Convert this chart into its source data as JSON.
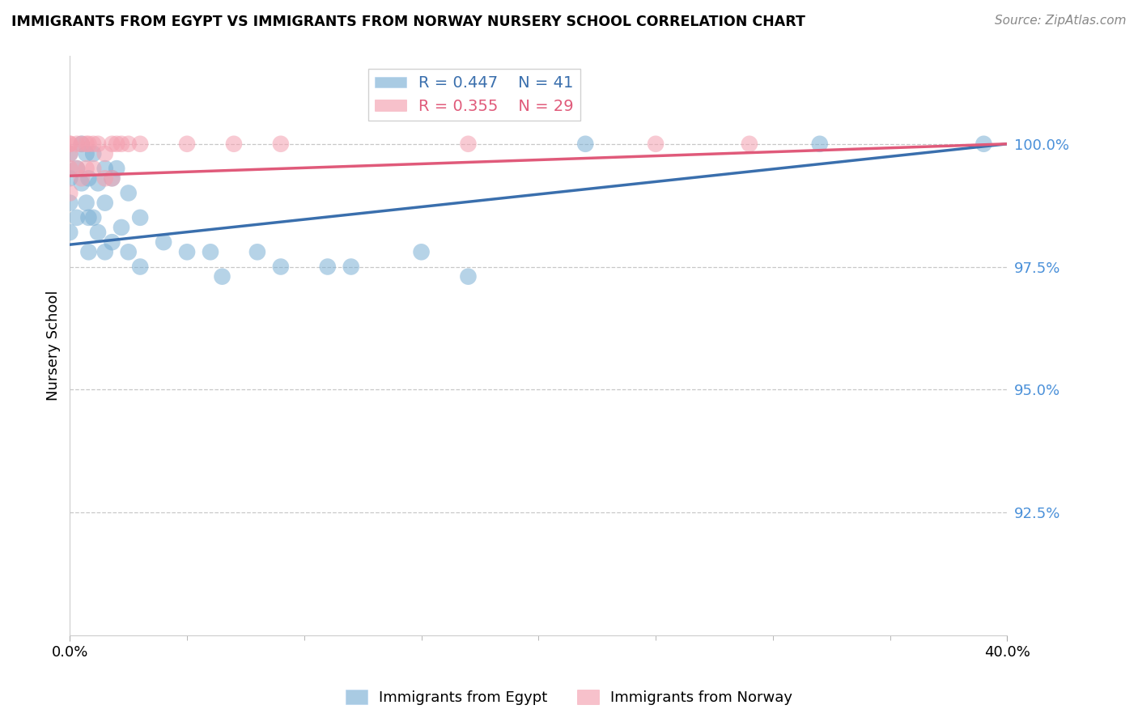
{
  "title": "IMMIGRANTS FROM EGYPT VS IMMIGRANTS FROM NORWAY NURSERY SCHOOL CORRELATION CHART",
  "source": "Source: ZipAtlas.com",
  "ylabel": "Nursery School",
  "yticks": [
    92.5,
    95.0,
    97.5,
    100.0
  ],
  "ytick_labels": [
    "92.5%",
    "95.0%",
    "97.5%",
    "100.0%"
  ],
  "xlim": [
    0.0,
    0.4
  ],
  "ylim": [
    90.0,
    101.8
  ],
  "egypt_color": "#7bafd4",
  "norway_color": "#f4a0b0",
  "egypt_line_color": "#3a6fad",
  "norway_line_color": "#e05a7a",
  "tick_color": "#4a90d9",
  "R_egypt": 0.447,
  "N_egypt": 41,
  "R_norway": 0.355,
  "N_norway": 29,
  "egypt_x": [
    0.0,
    0.0,
    0.0,
    0.0,
    0.003,
    0.003,
    0.005,
    0.005,
    0.007,
    0.007,
    0.008,
    0.008,
    0.008,
    0.01,
    0.01,
    0.012,
    0.012,
    0.015,
    0.015,
    0.015,
    0.018,
    0.018,
    0.02,
    0.022,
    0.025,
    0.025,
    0.03,
    0.03,
    0.04,
    0.05,
    0.06,
    0.065,
    0.08,
    0.09,
    0.11,
    0.12,
    0.15,
    0.17,
    0.22,
    0.32,
    0.39
  ],
  "egypt_y": [
    99.8,
    99.3,
    98.8,
    98.2,
    99.5,
    98.5,
    100.0,
    99.2,
    99.8,
    98.8,
    99.3,
    98.5,
    97.8,
    99.8,
    98.5,
    99.2,
    98.2,
    99.5,
    98.8,
    97.8,
    99.3,
    98.0,
    99.5,
    98.3,
    99.0,
    97.8,
    98.5,
    97.5,
    98.0,
    97.8,
    97.8,
    97.3,
    97.8,
    97.5,
    97.5,
    97.5,
    97.8,
    97.3,
    100.0,
    100.0,
    100.0
  ],
  "norway_x": [
    0.0,
    0.0,
    0.0,
    0.0,
    0.0,
    0.003,
    0.003,
    0.005,
    0.005,
    0.007,
    0.007,
    0.008,
    0.01,
    0.01,
    0.012,
    0.015,
    0.015,
    0.018,
    0.018,
    0.02,
    0.022,
    0.025,
    0.03,
    0.05,
    0.07,
    0.09,
    0.17,
    0.25,
    0.29
  ],
  "norway_y": [
    100.0,
    100.0,
    99.8,
    99.5,
    99.0,
    100.0,
    99.5,
    100.0,
    99.3,
    100.0,
    99.5,
    100.0,
    100.0,
    99.5,
    100.0,
    99.8,
    99.3,
    100.0,
    99.3,
    100.0,
    100.0,
    100.0,
    100.0,
    100.0,
    100.0,
    100.0,
    100.0,
    100.0,
    100.0
  ],
  "egypt_trendline": [
    97.95,
    100.0
  ],
  "norway_trendline": [
    99.35,
    100.0
  ]
}
